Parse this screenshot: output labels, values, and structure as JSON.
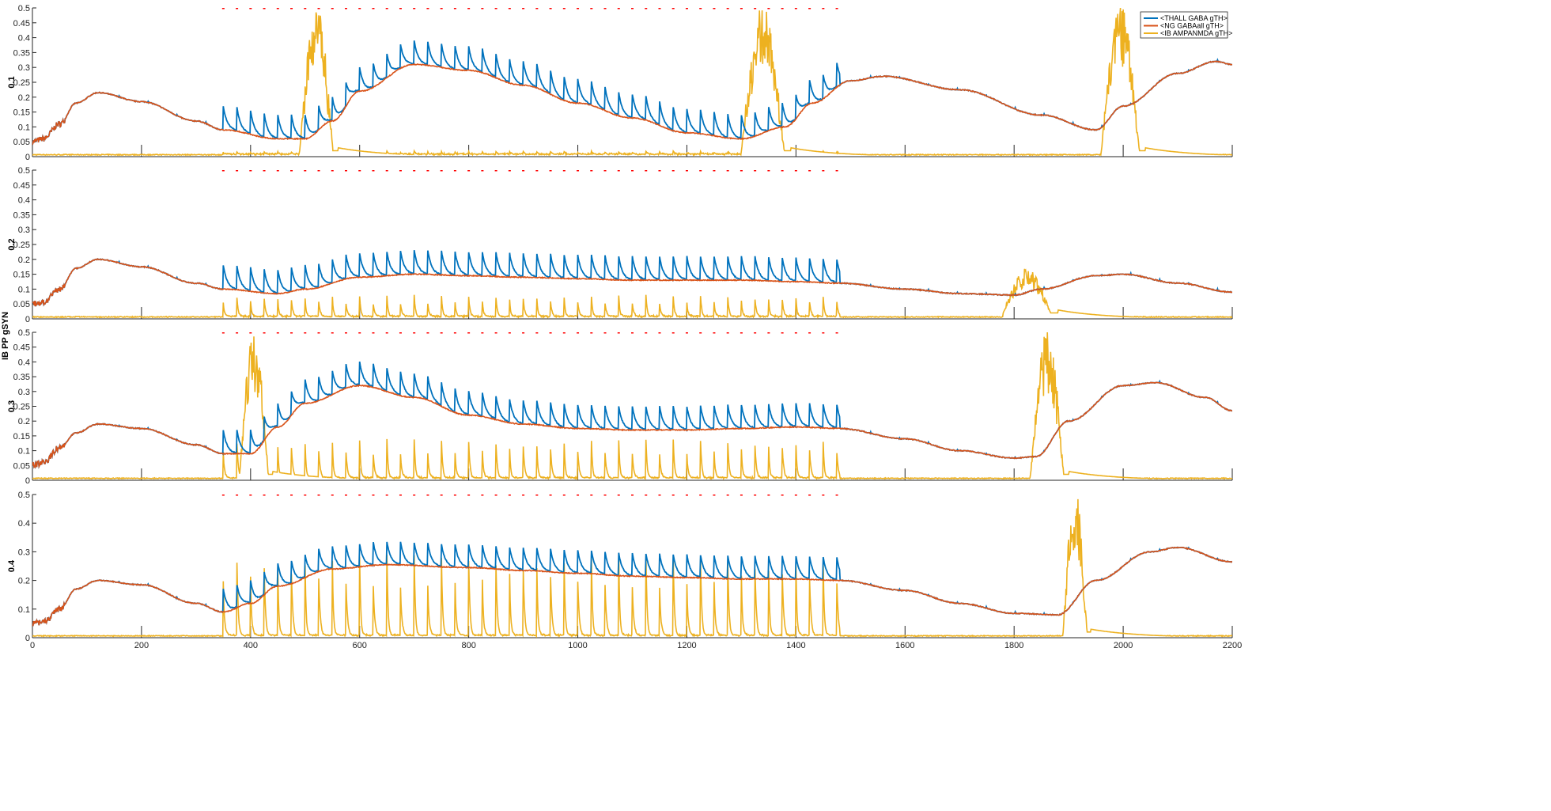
{
  "ylabel": "IB PP gSYN",
  "chart_data": {
    "type": "line",
    "xlim": [
      0,
      2200
    ],
    "x_ticks": [
      0,
      200,
      400,
      600,
      800,
      1000,
      1200,
      1400,
      1600,
      1800,
      2000,
      2200
    ],
    "x_tick_labels": [
      "0",
      "200",
      "400",
      "600",
      "800",
      "1000",
      "1200",
      "1400",
      "1600",
      "1800",
      "2000",
      "2200"
    ],
    "grid": false,
    "legend_position": "top-right",
    "legend": [
      "<THALL GABA gTH>",
      "<NG GABAall gTH>",
      "<IB AMPANMDA gTH>"
    ],
    "series_colors": [
      "#0072BD",
      "#D95319",
      "#EDB120"
    ],
    "marker_color": "#ff0000",
    "stimulus_markers": {
      "y": 0.5,
      "x": [
        350,
        375,
        400,
        425,
        450,
        475,
        500,
        525,
        550,
        575,
        600,
        625,
        650,
        675,
        700,
        725,
        750,
        775,
        800,
        825,
        850,
        875,
        900,
        925,
        950,
        975,
        1000,
        1025,
        1050,
        1075,
        1100,
        1125,
        1150,
        1175,
        1200,
        1225,
        1250,
        1275,
        1300,
        1325,
        1350,
        1375,
        1400,
        1425,
        1450,
        1475
      ]
    },
    "panels": [
      {
        "ylabel": "0.1",
        "ylim": [
          0,
          0.5
        ],
        "y_ticks": [
          0,
          0.05,
          0.1,
          0.15,
          0.2,
          0.25,
          0.3,
          0.35,
          0.4,
          0.45,
          0.5
        ],
        "y_tick_labels": [
          "0",
          "0.05",
          "0.1",
          "0.15",
          "0.2",
          "0.25",
          "0.3",
          "0.35",
          "0.4",
          "0.45",
          "0.5"
        ],
        "baseline": [
          [
            0,
            0.05
          ],
          [
            20,
            0.06
          ],
          [
            50,
            0.11
          ],
          [
            80,
            0.18
          ],
          [
            120,
            0.215
          ],
          [
            200,
            0.185
          ],
          [
            300,
            0.12
          ],
          [
            350,
            0.09
          ],
          [
            450,
            0.06
          ],
          [
            500,
            0.06
          ],
          [
            550,
            0.12
          ],
          [
            600,
            0.22
          ],
          [
            700,
            0.31
          ],
          [
            800,
            0.29
          ],
          [
            900,
            0.24
          ],
          [
            1000,
            0.18
          ],
          [
            1100,
            0.13
          ],
          [
            1200,
            0.08
          ],
          [
            1300,
            0.06
          ],
          [
            1380,
            0.1
          ],
          [
            1430,
            0.18
          ],
          [
            1500,
            0.255
          ],
          [
            1560,
            0.27
          ],
          [
            1700,
            0.225
          ],
          [
            1850,
            0.14
          ],
          [
            1950,
            0.09
          ],
          [
            2000,
            0.17
          ],
          [
            2100,
            0.28
          ],
          [
            2170,
            0.32
          ],
          [
            2200,
            0.31
          ]
        ],
        "pulse_start": 350,
        "pulse_end": 1480,
        "pulse_amplitude": 0.08,
        "bursts": [
          [
            490,
            560,
            0.5
          ],
          [
            1300,
            1390,
            0.5
          ],
          [
            1960,
            2040,
            0.5
          ]
        ],
        "spike_train": {
          "start": 350,
          "end": 1480,
          "height": 0.01
        },
        "ib_base": 0.005
      },
      {
        "ylabel": "0.2",
        "ylim": [
          0,
          0.5
        ],
        "y_ticks": [
          0,
          0.05,
          0.1,
          0.15,
          0.2,
          0.25,
          0.3,
          0.35,
          0.4,
          0.45,
          0.5
        ],
        "y_tick_labels": [
          "0",
          "0.05",
          "0.1",
          "0.15",
          "0.2",
          "0.25",
          "0.3",
          "0.35",
          "0.4",
          "0.45",
          "0.5"
        ],
        "baseline": [
          [
            0,
            0.05
          ],
          [
            20,
            0.055
          ],
          [
            50,
            0.1
          ],
          [
            80,
            0.17
          ],
          [
            120,
            0.2
          ],
          [
            200,
            0.175
          ],
          [
            300,
            0.12
          ],
          [
            350,
            0.1
          ],
          [
            450,
            0.085
          ],
          [
            500,
            0.1
          ],
          [
            600,
            0.14
          ],
          [
            700,
            0.15
          ],
          [
            800,
            0.145
          ],
          [
            900,
            0.14
          ],
          [
            1000,
            0.135
          ],
          [
            1100,
            0.13
          ],
          [
            1200,
            0.13
          ],
          [
            1300,
            0.13
          ],
          [
            1400,
            0.125
          ],
          [
            1480,
            0.12
          ],
          [
            1600,
            0.1
          ],
          [
            1700,
            0.085
          ],
          [
            1800,
            0.08
          ],
          [
            1850,
            0.1
          ],
          [
            1950,
            0.145
          ],
          [
            2000,
            0.15
          ],
          [
            2100,
            0.12
          ],
          [
            2200,
            0.09
          ]
        ],
        "pulse_start": 350,
        "pulse_end": 1480,
        "pulse_amplitude": 0.08,
        "bursts": [
          [
            1780,
            1880,
            0.15
          ]
        ],
        "spike_train": {
          "start": 350,
          "end": 1480,
          "height": 0.07
        },
        "ib_base": 0.005
      },
      {
        "ylabel": "0.3",
        "ylim": [
          0,
          0.5
        ],
        "y_ticks": [
          0,
          0.05,
          0.1,
          0.15,
          0.2,
          0.25,
          0.3,
          0.35,
          0.4,
          0.45,
          0.5
        ],
        "y_tick_labels": [
          "0",
          "0.05",
          "0.1",
          "0.15",
          "0.2",
          "0.25",
          "0.3",
          "0.35",
          "0.4",
          "0.45",
          "0.5"
        ],
        "baseline": [
          [
            0,
            0.05
          ],
          [
            20,
            0.06
          ],
          [
            50,
            0.11
          ],
          [
            80,
            0.16
          ],
          [
            120,
            0.19
          ],
          [
            200,
            0.175
          ],
          [
            300,
            0.12
          ],
          [
            350,
            0.09
          ],
          [
            400,
            0.09
          ],
          [
            450,
            0.18
          ],
          [
            500,
            0.26
          ],
          [
            600,
            0.32
          ],
          [
            700,
            0.28
          ],
          [
            800,
            0.22
          ],
          [
            900,
            0.19
          ],
          [
            1000,
            0.175
          ],
          [
            1100,
            0.17
          ],
          [
            1200,
            0.17
          ],
          [
            1300,
            0.175
          ],
          [
            1400,
            0.18
          ],
          [
            1480,
            0.175
          ],
          [
            1600,
            0.14
          ],
          [
            1700,
            0.1
          ],
          [
            1800,
            0.075
          ],
          [
            1840,
            0.08
          ],
          [
            1900,
            0.2
          ],
          [
            2000,
            0.32
          ],
          [
            2060,
            0.33
          ],
          [
            2150,
            0.28
          ],
          [
            2200,
            0.235
          ]
        ],
        "pulse_start": 350,
        "pulse_end": 1480,
        "pulse_amplitude": 0.08,
        "bursts": [
          [
            380,
            440,
            0.5
          ],
          [
            1830,
            1900,
            0.5
          ]
        ],
        "spike_train": {
          "start": 350,
          "end": 1480,
          "height": 0.13
        },
        "ib_base": 0.005
      },
      {
        "ylabel": "0.4",
        "ylim": [
          0,
          0.5
        ],
        "y_ticks": [
          0,
          0.1,
          0.2,
          0.3,
          0.4,
          0.5
        ],
        "y_tick_labels": [
          "0",
          "0.1",
          "0.2",
          "0.3",
          "0.4",
          "0.5"
        ],
        "baseline": [
          [
            0,
            0.05
          ],
          [
            20,
            0.055
          ],
          [
            50,
            0.1
          ],
          [
            80,
            0.17
          ],
          [
            120,
            0.2
          ],
          [
            200,
            0.185
          ],
          [
            300,
            0.12
          ],
          [
            350,
            0.09
          ],
          [
            400,
            0.12
          ],
          [
            450,
            0.18
          ],
          [
            550,
            0.24
          ],
          [
            650,
            0.255
          ],
          [
            800,
            0.245
          ],
          [
            900,
            0.235
          ],
          [
            1000,
            0.225
          ],
          [
            1100,
            0.215
          ],
          [
            1200,
            0.21
          ],
          [
            1300,
            0.205
          ],
          [
            1400,
            0.205
          ],
          [
            1480,
            0.2
          ],
          [
            1600,
            0.165
          ],
          [
            1700,
            0.12
          ],
          [
            1800,
            0.085
          ],
          [
            1880,
            0.08
          ],
          [
            1950,
            0.2
          ],
          [
            2050,
            0.3
          ],
          [
            2100,
            0.315
          ],
          [
            2200,
            0.265
          ]
        ],
        "pulse_start": 350,
        "pulse_end": 1480,
        "pulse_amplitude": 0.08,
        "bursts": [
          [
            1890,
            1940,
            0.5
          ]
        ],
        "spike_train": {
          "start": 350,
          "end": 1480,
          "height": 0.28
        },
        "ib_base": 0.005
      }
    ]
  }
}
